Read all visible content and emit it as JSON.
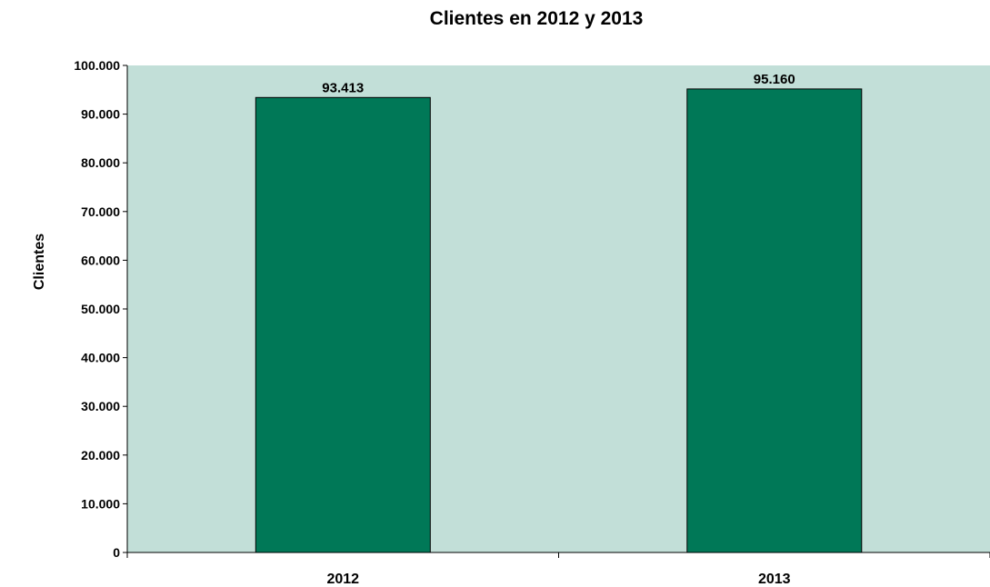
{
  "chart_data": {
    "type": "bar",
    "title": "Clientes  en  2012 y 2013",
    "xlabel": "",
    "ylabel": "Clientes",
    "categories": [
      "2012",
      "2013"
    ],
    "values": [
      93413,
      95160
    ],
    "data_labels": [
      "93.413",
      "95.160"
    ],
    "ylim": [
      0,
      100000
    ],
    "yticks": [
      0,
      10000,
      20000,
      30000,
      40000,
      50000,
      60000,
      70000,
      80000,
      90000,
      100000
    ],
    "ytick_labels": [
      "0",
      "10.000",
      "20.000",
      "30.000",
      "40.000",
      "50.000",
      "60.000",
      "70.000",
      "80.000",
      "90.000",
      "100.000"
    ],
    "grid": false,
    "legend": "none",
    "colors": {
      "bar": "#007857",
      "plot_background": "#c2dfd8",
      "axis": "#000000"
    }
  }
}
